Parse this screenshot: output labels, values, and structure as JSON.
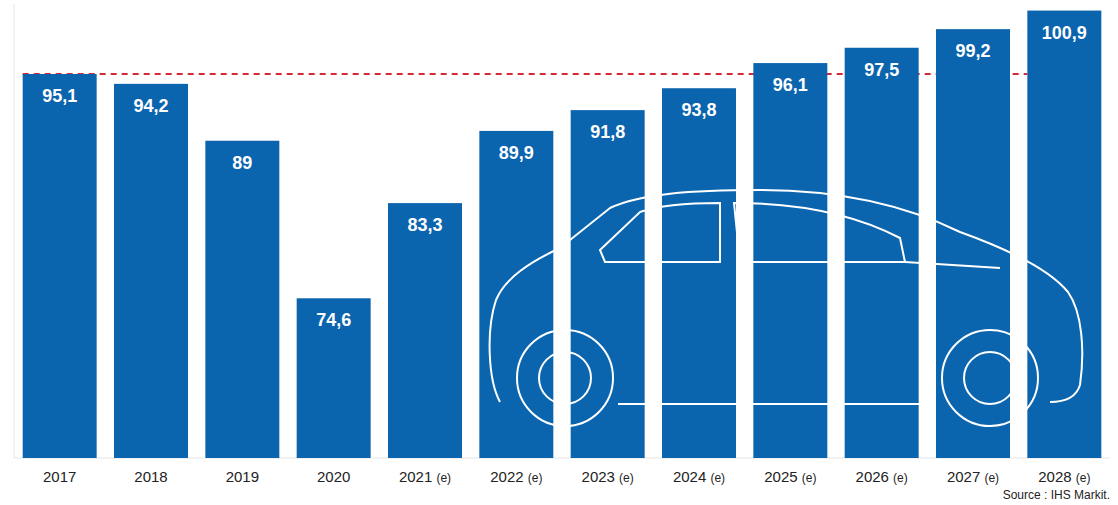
{
  "chart_data": {
    "type": "bar",
    "categories": [
      "2017",
      "2018",
      "2019",
      "2020",
      "2021 (e)",
      "2022 (e)",
      "2023 (e)",
      "2024 (e)",
      "2025 (e)",
      "2026 (e)",
      "2027 (e)",
      "2028 (e)"
    ],
    "values": [
      95.1,
      94.2,
      89,
      74.6,
      83.3,
      89.9,
      91.8,
      93.8,
      96.1,
      97.5,
      99.2,
      100.9
    ],
    "value_labels": [
      "95,1",
      "94,2",
      "89",
      "74,6",
      "83,3",
      "89,9",
      "91,8",
      "93,8",
      "96,1",
      "97,5",
      "99,2",
      "100,9"
    ],
    "color": "#0b64ae",
    "ylim": [
      60,
      101.5
    ],
    "data_labels": true,
    "tick_labels": "x",
    "grid": false,
    "reference_line": 95.1,
    "source": "Source : IHS Markit."
  }
}
